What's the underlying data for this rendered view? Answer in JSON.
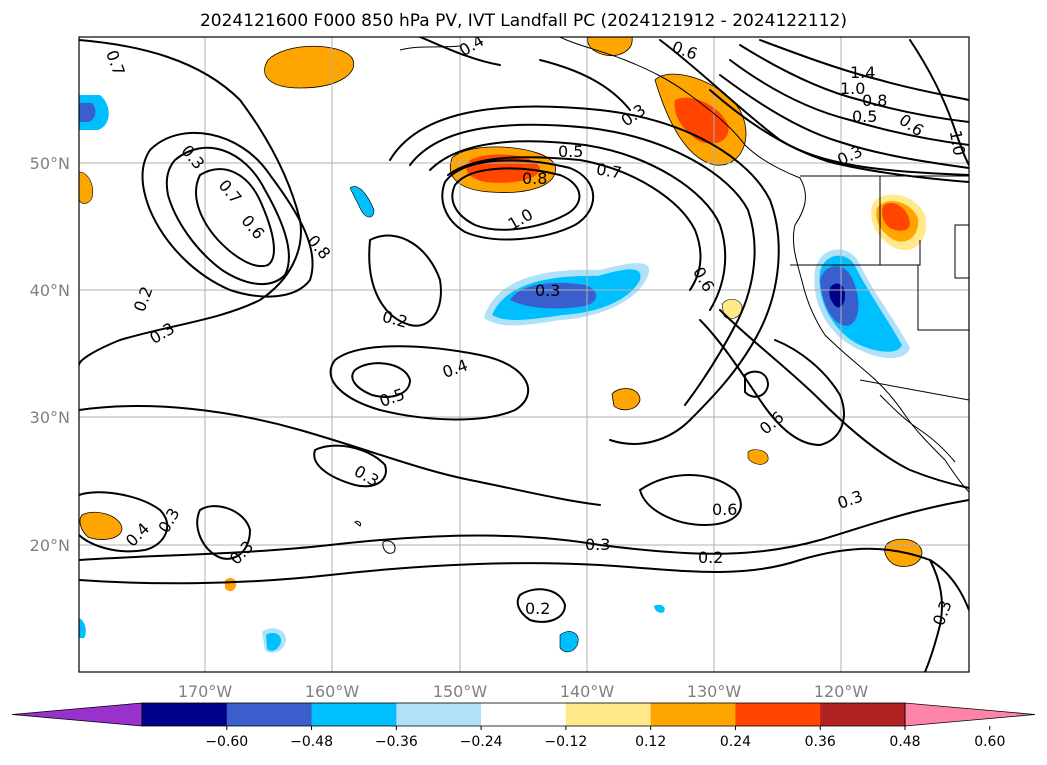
{
  "title": "2024121600 F000 850 hPa PV, IVT Landfall PC (2024121912 - 2024122112)",
  "lat_labels": [
    "50°N",
    "40°N",
    "30°N",
    "20°N"
  ],
  "lon_labels": [
    "170°W",
    "160°W",
    "150°W",
    "140°W",
    "130°W",
    "120°W"
  ],
  "colorbar": {
    "colors": [
      "#9932cc",
      "#00008b",
      "#3a5fcd",
      "#00bfff",
      "#afe1f8",
      "#ffffff",
      "#ffe98a",
      "#ffa500",
      "#ff4500",
      "#b22222",
      "#ff85a8"
    ],
    "tick_labels": [
      "−0.60",
      "−0.48",
      "−0.36",
      "−0.24",
      "−0.12",
      "0.12",
      "0.24",
      "0.36",
      "0.48",
      "0.60"
    ]
  },
  "contour_labels": [
    {
      "text": "0.7"
    },
    {
      "text": "0.4"
    },
    {
      "text": "0.6"
    },
    {
      "text": "1.4"
    },
    {
      "text": "1.0"
    },
    {
      "text": "0.8"
    },
    {
      "text": "0.5"
    },
    {
      "text": "0.6"
    },
    {
      "text": "1.0"
    },
    {
      "text": "0.3"
    },
    {
      "text": "0.3"
    },
    {
      "text": "0.5"
    },
    {
      "text": "0.7"
    },
    {
      "text": "0.8"
    },
    {
      "text": "1.0"
    },
    {
      "text": "0.3"
    },
    {
      "text": "0.7"
    },
    {
      "text": "0.6"
    },
    {
      "text": "0.8"
    },
    {
      "text": "0.2"
    },
    {
      "text": "0.3"
    },
    {
      "text": "0.3"
    },
    {
      "text": "0.6"
    },
    {
      "text": "0.2"
    },
    {
      "text": "0.5"
    },
    {
      "text": "0.4"
    },
    {
      "text": "0.6"
    },
    {
      "text": "0.3"
    },
    {
      "text": "0.6"
    },
    {
      "text": "0.3"
    },
    {
      "text": "0.4"
    },
    {
      "text": "0.3"
    },
    {
      "text": "0.3"
    },
    {
      "text": "0.3"
    },
    {
      "text": "0.2"
    },
    {
      "text": "0.2"
    },
    {
      "text": "0.3"
    }
  ]
}
